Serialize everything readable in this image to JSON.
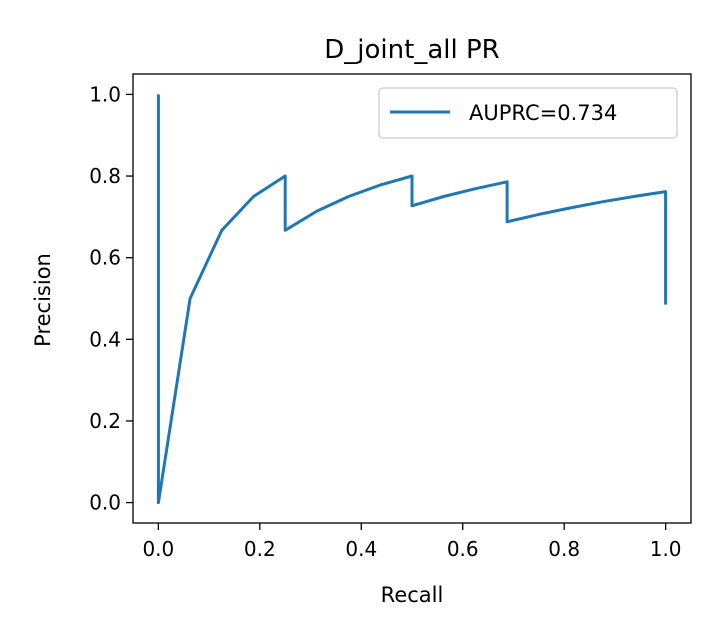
{
  "chart_data": {
    "type": "line",
    "title": "D_joint_all PR",
    "xlabel": "Recall",
    "ylabel": "Precision",
    "xlim": [
      -0.05,
      1.05
    ],
    "ylim": [
      -0.05,
      1.05
    ],
    "x_ticks": [
      0.0,
      0.2,
      0.4,
      0.6,
      0.8,
      1.0
    ],
    "x_tick_labels": [
      "0.0",
      "0.2",
      "0.4",
      "0.6",
      "0.8",
      "1.0"
    ],
    "y_ticks": [
      0.0,
      0.2,
      0.4,
      0.6,
      0.8,
      1.0
    ],
    "y_tick_labels": [
      "0.0",
      "0.2",
      "0.4",
      "0.6",
      "0.8",
      "1.0"
    ],
    "grid": false,
    "legend_position": "top-right",
    "series": [
      {
        "name": "AUPRC=0.734",
        "color": "#1f77b4",
        "points": [
          [
            0.0,
            1.0
          ],
          [
            0.0,
            0.0
          ],
          [
            0.0625,
            0.5
          ],
          [
            0.125,
            0.667
          ],
          [
            0.1875,
            0.75
          ],
          [
            0.25,
            0.8
          ],
          [
            0.25,
            0.667
          ],
          [
            0.3125,
            0.714
          ],
          [
            0.375,
            0.75
          ],
          [
            0.4375,
            0.778
          ],
          [
            0.5,
            0.8
          ],
          [
            0.5,
            0.727
          ],
          [
            0.5625,
            0.75
          ],
          [
            0.625,
            0.769
          ],
          [
            0.6875,
            0.786
          ],
          [
            0.6875,
            0.688
          ],
          [
            0.75,
            0.706
          ],
          [
            0.8125,
            0.722
          ],
          [
            0.875,
            0.737
          ],
          [
            0.9375,
            0.75
          ],
          [
            1.0,
            0.762
          ],
          [
            1.0,
            0.485
          ]
        ]
      }
    ]
  }
}
